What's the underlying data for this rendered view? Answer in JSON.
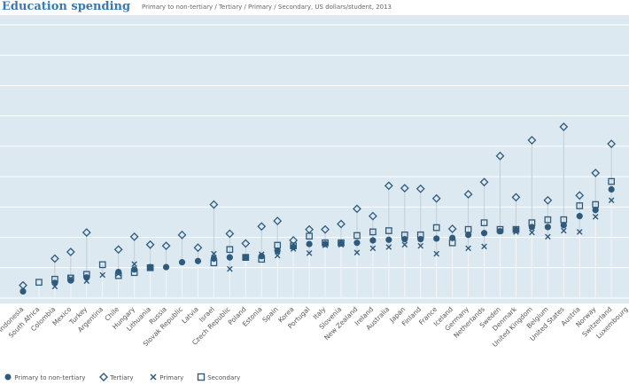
{
  "header": {
    "title": "Education spending",
    "subtitle": "Primary to non-tertiary / Tertiary / Primary / Secondary, US dollars/student, 2013"
  },
  "colors": {
    "marker": "#2e5b7d",
    "plot_bg": "#dde9f1",
    "grid": "#ffffff",
    "stem": "#c2ced8"
  },
  "chart_data": {
    "type": "scatter",
    "title": "Education spending",
    "subtitle": "Primary to non-tertiary / Tertiary / Primary / Secondary, US dollars/student, 2013",
    "ylim": [
      0,
      45000
    ],
    "grid": true,
    "legend_placement": "bottom-left",
    "categories": [
      "Indonesia",
      "South Africa",
      "Colombia",
      "Mexico",
      "Turkey",
      "Argentina",
      "Chile",
      "Hungary",
      "Lithuania",
      "Russia",
      "Slovak Republic",
      "Latvia",
      "Israel",
      "Czech Republic",
      "Poland",
      "Estonia",
      "Spain",
      "Korea",
      "Portugal",
      "Italy",
      "Slovenia",
      "New Zealand",
      "Ireland",
      "Australia",
      "Japan",
      "Finland",
      "France",
      "Iceland",
      "Germany",
      "Netherlands",
      "Sweden",
      "Denmark",
      "United Kingdom",
      "Belgium",
      "United States",
      "Austria",
      "Norway",
      "Switzerland",
      "Luxembourg"
    ],
    "series": [
      {
        "name": "Primary to non-tertiary",
        "marker": "circle",
        "values": [
          1100,
          null,
          2500,
          2900,
          3400,
          null,
          4300,
          4700,
          5100,
          5100,
          5900,
          6100,
          6500,
          6700,
          6700,
          6900,
          7800,
          8400,
          8900,
          8900,
          9000,
          9100,
          9500,
          9600,
          9700,
          9700,
          9800,
          9900,
          10400,
          10700,
          11000,
          11200,
          11700,
          11700,
          12000,
          13500,
          14500,
          17900,
          null
        ]
      },
      {
        "name": "Tertiary",
        "marker": "diamond",
        "values": [
          2100,
          null,
          6500,
          7600,
          10800,
          null,
          8000,
          10100,
          8800,
          8600,
          10400,
          8300,
          15400,
          10600,
          9000,
          11800,
          12700,
          9500,
          11300,
          11300,
          12200,
          14700,
          13500,
          18500,
          18100,
          18000,
          16400,
          11400,
          17100,
          19100,
          23400,
          16600,
          26000,
          16100,
          28200,
          16900,
          20600,
          25400,
          null
        ]
      },
      {
        "name": "Primary",
        "marker": "x",
        "values": [
          null,
          null,
          1900,
          3200,
          2800,
          3800,
          4000,
          5600,
          5000,
          null,
          null,
          null,
          7300,
          4800,
          6700,
          7200,
          7000,
          8100,
          7400,
          8700,
          8800,
          7500,
          8200,
          8400,
          8800,
          8600,
          7300,
          null,
          8200,
          8500,
          11000,
          10900,
          10800,
          10100,
          11100,
          10900,
          13400,
          16100,
          null
        ]
      },
      {
        "name": "Secondary",
        "marker": "square",
        "values": [
          null,
          2600,
          3100,
          3300,
          3900,
          5500,
          3700,
          4200,
          5000,
          null,
          null,
          null,
          5800,
          8000,
          6700,
          6400,
          8700,
          8600,
          10200,
          9100,
          9100,
          10300,
          10900,
          11100,
          10400,
          10400,
          11600,
          9100,
          11300,
          12400,
          11300,
          11300,
          12400,
          12900,
          12900,
          15200,
          15400,
          19200,
          null
        ]
      }
    ]
  },
  "legend": [
    {
      "label": "Primary to non-tertiary",
      "icon": "circle-icon"
    },
    {
      "label": "Tertiary",
      "icon": "diamond-icon"
    },
    {
      "label": "Primary",
      "icon": "x-icon"
    },
    {
      "label": "Secondary",
      "icon": "square-icon"
    }
  ]
}
